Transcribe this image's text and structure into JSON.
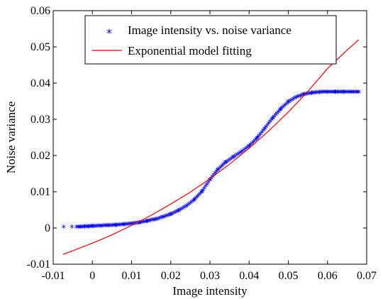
{
  "chart_data": {
    "type": "scatter",
    "xlabel": "Image intensity",
    "ylabel": "Noise variance",
    "xlim": [
      -0.01,
      0.07
    ],
    "ylim": [
      -0.01,
      0.06
    ],
    "xticks": [
      "-0.01",
      "0",
      "0.01",
      "0.02",
      "0.03",
      "0.04",
      "0.05",
      "0.06",
      "0.07"
    ],
    "yticks": [
      "-0.01",
      "0",
      "0.01",
      "0.02",
      "0.03",
      "0.04",
      "0.05",
      "0.06"
    ],
    "grid": false,
    "legend_position": "top-right",
    "series": [
      {
        "name": "Image intensity vs. noise variance",
        "type": "scatter",
        "marker": "*",
        "color": "#0000ff",
        "x": [
          -0.0073,
          -0.0052,
          -0.004,
          -0.003,
          -0.002,
          -0.001,
          0.0,
          0.002,
          0.004,
          0.006,
          0.008,
          0.01,
          0.012,
          0.014,
          0.016,
          0.018,
          0.02,
          0.022,
          0.024,
          0.026,
          0.028,
          0.03,
          0.032,
          0.034,
          0.036,
          0.038,
          0.04,
          0.042,
          0.044,
          0.046,
          0.048,
          0.05,
          0.052,
          0.054,
          0.056,
          0.058,
          0.06,
          0.062,
          0.064,
          0.066,
          0.068
        ],
        "y": [
          0.0,
          0.0,
          0.0,
          0.0,
          0.0001,
          0.0001,
          0.0002,
          0.0003,
          0.0004,
          0.0005,
          0.0007,
          0.0009,
          0.0012,
          0.0016,
          0.0021,
          0.0027,
          0.0035,
          0.0045,
          0.0058,
          0.0075,
          0.0098,
          0.013,
          0.0158,
          0.0178,
          0.0193,
          0.0207,
          0.0223,
          0.0245,
          0.0272,
          0.03,
          0.0325,
          0.0345,
          0.0358,
          0.0366,
          0.037,
          0.0372,
          0.0373,
          0.0373,
          0.0373,
          0.0373,
          0.0373
        ]
      },
      {
        "name": "Exponential model fitting",
        "type": "line",
        "color": "#ff0000",
        "x": [
          -0.0075,
          -0.005,
          0.0,
          0.005,
          0.01,
          0.015,
          0.02,
          0.025,
          0.03,
          0.035,
          0.04,
          0.045,
          0.05,
          0.055,
          0.06,
          0.065,
          0.068
        ],
        "y": [
          -0.0073,
          -0.0063,
          -0.0042,
          -0.0019,
          0.0007,
          0.0035,
          0.0066,
          0.0099,
          0.0136,
          0.0176,
          0.022,
          0.0268,
          0.032,
          0.0377,
          0.044,
          0.0491,
          0.052
        ]
      }
    ]
  }
}
